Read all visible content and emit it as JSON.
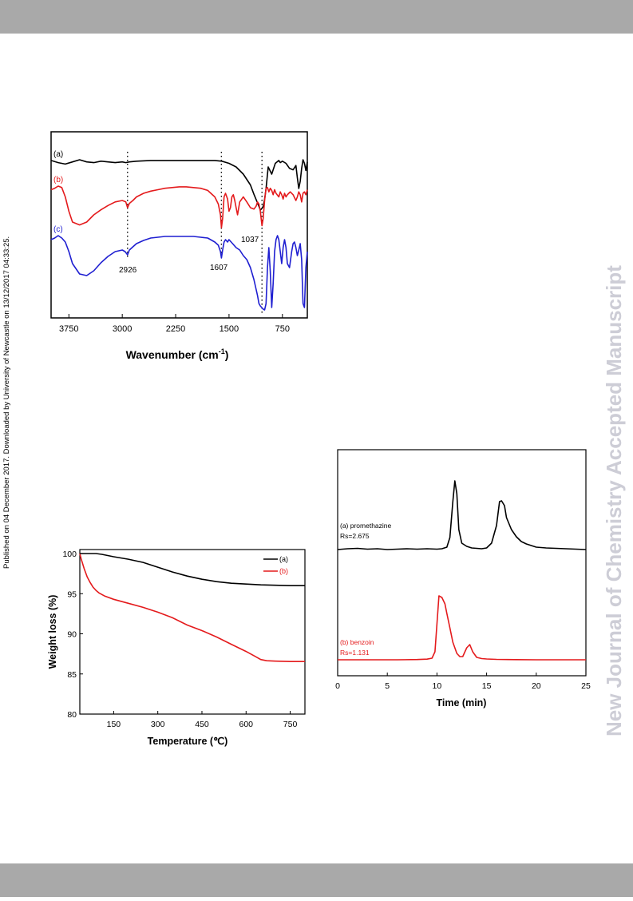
{
  "page": {
    "side_note": "Published on 04 December 2017. Downloaded by University of Newcastle on 13/12/2017 04:33:25.",
    "watermark": "New Journal of Chemistry Accepted Manuscript",
    "colors": {
      "band": "#a9a9a9",
      "watermark": "#cdcdd6"
    }
  },
  "chart_data": [
    {
      "type": "line",
      "xlabel": "Wavenumber (cm-1)",
      "xlabel_main": "Wavenumber (cm",
      "xlabel_sup": "-1",
      "xlabel_close": ")",
      "ylabel": "",
      "x_reversed": true,
      "xlim": [
        4000,
        400
      ],
      "xticks": [
        3750,
        3000,
        2250,
        1500,
        750
      ],
      "xtick_labels": [
        "3750",
        "3000",
        "2250",
        "1500",
        "750"
      ],
      "yticks_visible": false,
      "offset_traces": true,
      "series": [
        {
          "name": "(a)",
          "color": "#000000",
          "x": [
            4000,
            3900,
            3800,
            3700,
            3600,
            3500,
            3400,
            3300,
            3200,
            3100,
            3000,
            2950,
            2900,
            2800,
            2600,
            2400,
            2200,
            2000,
            1800,
            1700,
            1600,
            1500,
            1400,
            1300,
            1200,
            1150,
            1100,
            1080,
            1060,
            1040,
            1020,
            1000,
            980,
            950,
            900,
            850,
            800,
            780,
            750,
            700,
            650,
            600,
            560,
            540,
            520,
            500,
            480,
            460,
            440,
            420,
            400
          ],
          "y": [
            -1,
            -4,
            -6,
            -3,
            0,
            -3,
            -4,
            -2,
            -3,
            -4,
            -3,
            -4,
            -3,
            -2,
            -1,
            -1,
            -1,
            -1,
            -1,
            -1,
            -2,
            -5,
            -10,
            -20,
            -35,
            -48,
            -60,
            -65,
            -70,
            -68,
            -65,
            -55,
            -40,
            -10,
            -20,
            -5,
            -1,
            -4,
            -2,
            -5,
            -12,
            -14,
            -8,
            -25,
            -40,
            -30,
            -12,
            0,
            -5,
            -15,
            -3
          ]
        },
        {
          "name": "(b)",
          "color": "#e41a1c",
          "x": [
            4000,
            3950,
            3900,
            3850,
            3800,
            3750,
            3700,
            3600,
            3500,
            3400,
            3300,
            3200,
            3100,
            3000,
            2950,
            2926,
            2900,
            2850,
            2800,
            2700,
            2600,
            2500,
            2400,
            2300,
            2200,
            2100,
            2000,
            1900,
            1800,
            1700,
            1650,
            1620,
            1607,
            1590,
            1570,
            1550,
            1520,
            1500,
            1480,
            1460,
            1440,
            1420,
            1400,
            1380,
            1350,
            1300,
            1250,
            1200,
            1150,
            1120,
            1100,
            1080,
            1060,
            1037,
            1020,
            1000,
            980,
            960,
            940,
            920,
            900,
            880,
            860,
            840,
            800,
            780,
            760,
            740,
            720,
            700,
            680,
            660,
            640,
            600,
            560,
            540,
            520,
            500,
            480,
            460,
            440,
            420,
            400
          ],
          "y": [
            -5,
            -3,
            0,
            -2,
            -15,
            -35,
            -50,
            -54,
            -50,
            -40,
            -33,
            -27,
            -22,
            -20,
            -22,
            -30,
            -24,
            -20,
            -15,
            -10,
            -7,
            -5,
            -3,
            -2,
            -1,
            -1,
            -2,
            -3,
            -6,
            -15,
            -25,
            -40,
            -58,
            -45,
            -15,
            -10,
            -18,
            -35,
            -30,
            -15,
            -12,
            -20,
            -30,
            -40,
            -22,
            -15,
            -22,
            -30,
            -32,
            -28,
            -22,
            -25,
            -35,
            -55,
            -45,
            -20,
            -3,
            -2,
            -8,
            -3,
            -6,
            -12,
            -5,
            -10,
            -15,
            -8,
            -12,
            -18,
            -10,
            -15,
            -12,
            -10,
            -8,
            -12,
            -20,
            -15,
            -8,
            -12,
            -22,
            -10,
            -8,
            -12,
            -5
          ]
        },
        {
          "name": "(c)",
          "color": "#1f1fd1",
          "x": [
            4000,
            3950,
            3900,
            3850,
            3800,
            3750,
            3700,
            3600,
            3500,
            3400,
            3300,
            3200,
            3100,
            3000,
            2960,
            2926,
            2900,
            2850,
            2800,
            2700,
            2600,
            2500,
            2400,
            2300,
            2200,
            2100,
            2000,
            1900,
            1800,
            1700,
            1650,
            1620,
            1607,
            1590,
            1570,
            1550,
            1520,
            1500,
            1450,
            1400,
            1350,
            1300,
            1250,
            1200,
            1150,
            1100,
            1080,
            1060,
            1040,
            1020,
            1000,
            980,
            960,
            940,
            920,
            900,
            880,
            860,
            840,
            820,
            800,
            780,
            760,
            740,
            720,
            700,
            680,
            650,
            620,
            600,
            580,
            560,
            540,
            520,
            500,
            480,
            460,
            440,
            420,
            400
          ],
          "y": [
            -5,
            -3,
            0,
            -3,
            -8,
            -20,
            -35,
            -48,
            -50,
            -44,
            -34,
            -26,
            -20,
            -18,
            -20,
            -24,
            -18,
            -14,
            -10,
            -6,
            -3,
            -2,
            -1,
            -1,
            -1,
            -1,
            -1,
            -2,
            -3,
            -8,
            -12,
            -20,
            -28,
            -18,
            -8,
            -5,
            -8,
            -5,
            -10,
            -15,
            -18,
            -25,
            -30,
            -40,
            -55,
            -75,
            -85,
            -88,
            -90,
            -92,
            -93,
            -85,
            -40,
            -15,
            -45,
            -90,
            -60,
            -20,
            -5,
            0,
            -5,
            -20,
            -35,
            -15,
            -5,
            -15,
            -35,
            -40,
            -20,
            -10,
            -8,
            -15,
            -25,
            -18,
            -10,
            -30,
            -85,
            -90,
            -40,
            -20
          ]
        }
      ],
      "series_labels": [
        "(a)",
        "(b)",
        "(c)"
      ],
      "annotations": [
        {
          "text": "2926",
          "x": 2926
        },
        {
          "text": "1607",
          "x": 1607
        },
        {
          "text": "1037",
          "x": 1037
        }
      ],
      "guide_lines_x": [
        2926,
        1607,
        1037
      ]
    },
    {
      "type": "line",
      "xlabel": "Temperature (℃)",
      "ylabel": "Weight loss (%)",
      "xlim": [
        35,
        800
      ],
      "ylim": [
        80,
        100.5
      ],
      "xticks": [
        150,
        300,
        450,
        600,
        750
      ],
      "xtick_labels": [
        "150",
        "300",
        "450",
        "600",
        "750"
      ],
      "yticks": [
        80,
        85,
        90,
        95,
        100
      ],
      "ytick_labels": [
        "80",
        "85",
        "90",
        "95",
        "100"
      ],
      "legend_position": "top-right",
      "series": [
        {
          "name": "(a)",
          "color": "#000000",
          "x": [
            35,
            60,
            90,
            110,
            150,
            200,
            250,
            300,
            350,
            400,
            450,
            500,
            550,
            600,
            650,
            700,
            750,
            800
          ],
          "y": [
            100,
            100,
            100,
            99.9,
            99.6,
            99.3,
            98.9,
            98.3,
            97.7,
            97.2,
            96.8,
            96.5,
            96.3,
            96.2,
            96.1,
            96.05,
            96,
            96
          ]
        },
        {
          "name": "(b)",
          "color": "#e41a1c",
          "x": [
            35,
            40,
            50,
            60,
            70,
            80,
            90,
            100,
            120,
            150,
            200,
            250,
            300,
            350,
            400,
            450,
            500,
            550,
            600,
            630,
            650,
            670,
            700,
            750,
            800
          ],
          "y": [
            100,
            99.3,
            98.1,
            97.1,
            96.4,
            95.8,
            95.4,
            95.1,
            94.7,
            94.3,
            93.8,
            93.3,
            92.7,
            92.0,
            91.1,
            90.4,
            89.6,
            88.7,
            87.8,
            87.2,
            86.8,
            86.65,
            86.6,
            86.55,
            86.55
          ]
        }
      ]
    },
    {
      "type": "line",
      "xlabel": "Time (min)",
      "ylabel": "",
      "xlim": [
        0,
        25
      ],
      "xticks": [
        0,
        5,
        10,
        15,
        20,
        25
      ],
      "xtick_labels": [
        "0",
        "5",
        "10",
        "15",
        "20",
        "25"
      ],
      "yticks_visible": false,
      "offset_traces": true,
      "series": [
        {
          "name": "(a) promethazine",
          "color": "#000000",
          "label_line2": "Rs=2.675",
          "x": [
            0,
            1,
            2,
            3,
            4,
            5,
            6,
            7,
            8,
            9,
            10,
            10.5,
            11,
            11.3,
            11.6,
            11.8,
            12.0,
            12.2,
            12.5,
            13,
            13.5,
            14,
            14.5,
            15,
            15.5,
            16,
            16.3,
            16.5,
            16.8,
            17,
            17.5,
            18,
            18.5,
            19,
            19.5,
            20,
            21,
            22,
            23,
            24,
            25
          ],
          "y": [
            0,
            1,
            1.5,
            0.5,
            1,
            0,
            0.5,
            1,
            0.5,
            1,
            0.5,
            1,
            3,
            15,
            60,
            86,
            70,
            25,
            8,
            4,
            2,
            1.5,
            1,
            2,
            8,
            30,
            60,
            61,
            55,
            40,
            25,
            16,
            10,
            7,
            5,
            3,
            2,
            1.5,
            1,
            0.5,
            0
          ]
        },
        {
          "name": "(b) benzoin",
          "color": "#e41a1c",
          "label_line2": "Rs=1.131",
          "x": [
            0,
            2,
            4,
            6,
            8,
            9,
            9.5,
            9.8,
            10,
            10.2,
            10.5,
            10.8,
            11,
            11.3,
            11.6,
            12,
            12.3,
            12.6,
            13,
            13.3,
            13.6,
            14,
            14.5,
            15,
            16,
            18,
            20,
            22,
            25
          ],
          "y": [
            0,
            0,
            0,
            0,
            0.3,
            0.8,
            2,
            10,
            45,
            80,
            78,
            70,
            58,
            40,
            22,
            8,
            4,
            4,
            15,
            19,
            10,
            3,
            1.5,
            1,
            0.5,
            0.2,
            0,
            0,
            0
          ]
        }
      ]
    }
  ]
}
